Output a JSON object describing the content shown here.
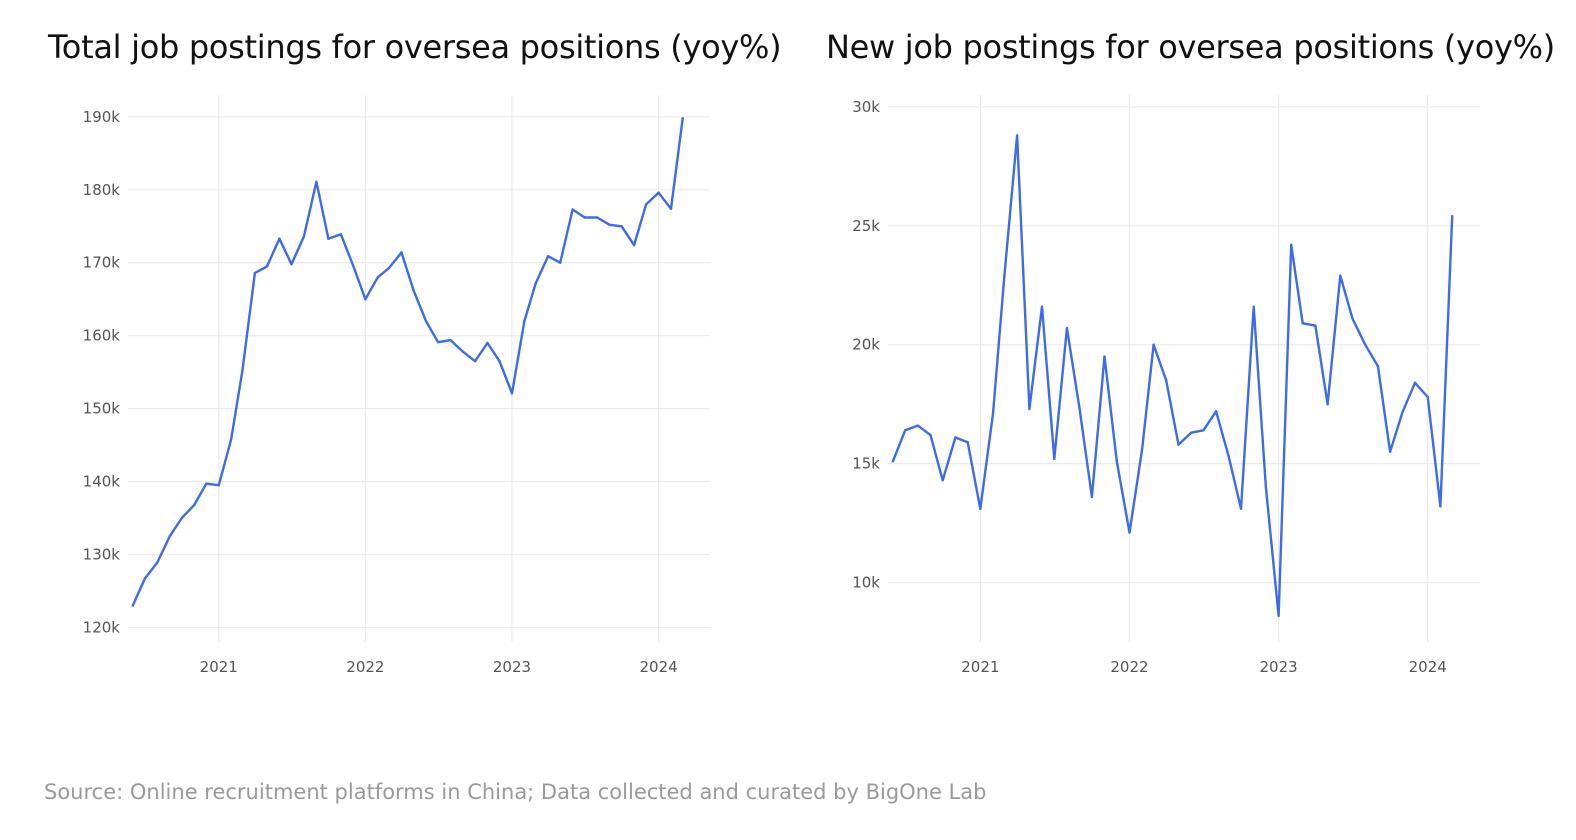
{
  "source_note": "Source: Online recruitment platforms in China; Data collected and curated by BigOne Lab",
  "line_color": "#3d6bea",
  "chart_data": [
    {
      "type": "line",
      "title": "Total job postings for oversea positions (yoy%)",
      "xlabel": "",
      "ylabel": "",
      "grid": true,
      "legend": "none",
      "xlim": [
        "2020-05-20",
        "2024-05-08"
      ],
      "ylim": [
        118000,
        193000
      ],
      "x_ticks": [
        "2021-01-01",
        "2022-01-01",
        "2023-01-01",
        "2024-01-01"
      ],
      "x_tick_labels": [
        "2021",
        "2022",
        "2023",
        "2024"
      ],
      "y_ticks": [
        120000,
        130000,
        140000,
        150000,
        160000,
        170000,
        180000,
        190000
      ],
      "y_tick_labels": [
        "120k",
        "130k",
        "140k",
        "150k",
        "160k",
        "170k",
        "180k",
        "190k"
      ],
      "series": [
        {
          "x": [
            "2020-06",
            "2020-07",
            "2020-08",
            "2020-09",
            "2020-10",
            "2020-11",
            "2020-12",
            "2021-01",
            "2021-02",
            "2021-03",
            "2021-04",
            "2021-05",
            "2021-06",
            "2021-07",
            "2021-08",
            "2021-09",
            "2021-10",
            "2021-11",
            "2021-12",
            "2022-01",
            "2022-02",
            "2022-03",
            "2022-04",
            "2022-05",
            "2022-06",
            "2022-07",
            "2022-08",
            "2022-09",
            "2022-10",
            "2022-11",
            "2022-12",
            "2023-01",
            "2023-02",
            "2023-03",
            "2023-04",
            "2023-05",
            "2023-06",
            "2023-07",
            "2023-08",
            "2023-09",
            "2023-10",
            "2023-11",
            "2023-12",
            "2024-01",
            "2024-02",
            "2024-03"
          ],
          "values": [
            123000,
            126700,
            128900,
            132500,
            135000,
            136800,
            139700,
            139500,
            145800,
            155300,
            168600,
            169500,
            173300,
            169800,
            173600,
            181100,
            173300,
            173900,
            169700,
            165000,
            168000,
            169300,
            171400,
            166200,
            162000,
            159100,
            159400,
            157800,
            156500,
            159000,
            156500,
            152100,
            162000,
            167200,
            170900,
            170000,
            177300,
            176200,
            176200,
            175200,
            175000,
            172400,
            178000,
            179600,
            177400,
            189800
          ]
        }
      ]
    },
    {
      "type": "line",
      "title": "New job postings for oversea positions (yoy%)",
      "xlabel": "",
      "ylabel": "",
      "grid": true,
      "legend": "none",
      "xlim": [
        "2020-05-20",
        "2024-05-08"
      ],
      "ylim": [
        7500,
        30500
      ],
      "x_ticks": [
        "2021-01-01",
        "2022-01-01",
        "2023-01-01",
        "2024-01-01"
      ],
      "x_tick_labels": [
        "2021",
        "2022",
        "2023",
        "2024"
      ],
      "y_ticks": [
        10000,
        15000,
        20000,
        25000,
        30000
      ],
      "y_tick_labels": [
        "10k",
        "15k",
        "20k",
        "25k",
        "30k"
      ],
      "series": [
        {
          "x": [
            "2020-06",
            "2020-07",
            "2020-08",
            "2020-09",
            "2020-10",
            "2020-11",
            "2020-12",
            "2021-01",
            "2021-02",
            "2021-03",
            "2021-04",
            "2021-05",
            "2021-06",
            "2021-07",
            "2021-08",
            "2021-09",
            "2021-10",
            "2021-11",
            "2021-12",
            "2022-01",
            "2022-02",
            "2022-03",
            "2022-04",
            "2022-05",
            "2022-06",
            "2022-07",
            "2022-08",
            "2022-09",
            "2022-10",
            "2022-11",
            "2022-12",
            "2023-01",
            "2023-02",
            "2023-03",
            "2023-04",
            "2023-05",
            "2023-06",
            "2023-07",
            "2023-08",
            "2023-09",
            "2023-10",
            "2023-11",
            "2023-12",
            "2024-01",
            "2024-02",
            "2024-03"
          ],
          "values": [
            15100,
            16400,
            16600,
            16200,
            14300,
            16100,
            15900,
            13100,
            17100,
            22900,
            28800,
            17300,
            21600,
            15200,
            20700,
            17300,
            13600,
            19500,
            15100,
            12100,
            15600,
            20000,
            18500,
            15800,
            16300,
            16400,
            17200,
            15300,
            13100,
            21600,
            14000,
            8600,
            24200,
            20900,
            20800,
            17500,
            22900,
            21100,
            20000,
            19100,
            15500,
            17200,
            18400,
            17800,
            13200,
            25400
          ]
        }
      ]
    }
  ]
}
